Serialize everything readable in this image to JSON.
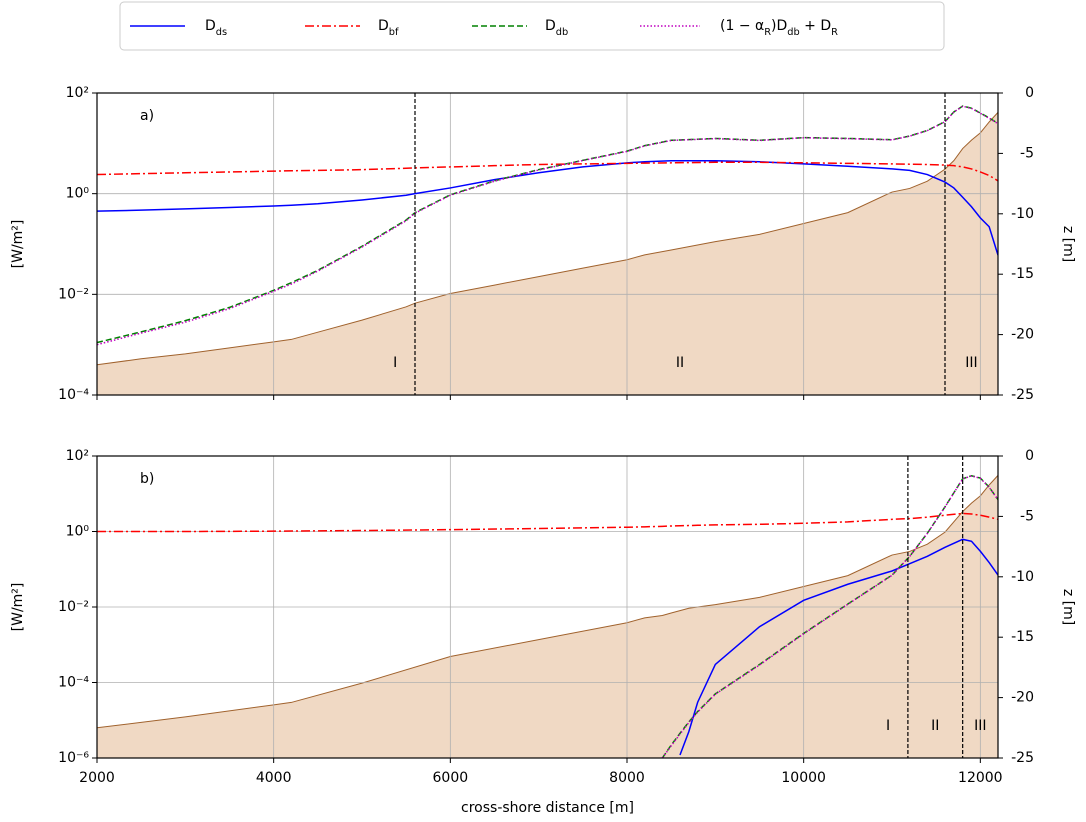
{
  "chart_data": [
    {
      "type": "line",
      "label": "a)",
      "ylabel": "[W/m²]",
      "y2label": "z [m]",
      "log_y": true,
      "grid": true,
      "show_xtick_labels": false,
      "xlim": [
        2000,
        12200
      ],
      "xticks": [
        2000,
        4000,
        6000,
        8000,
        10000,
        12000
      ],
      "ylim": [
        0.0001,
        100
      ],
      "yticks": [
        {
          "value": 0.0001,
          "label": "10⁻⁴"
        },
        {
          "value": 0.01,
          "label": "10⁻²"
        },
        {
          "value": 1,
          "label": "10⁰"
        },
        {
          "value": 100,
          "label": "10²"
        }
      ],
      "y2lim": [
        -25,
        0
      ],
      "y2ticks": [
        0,
        -5,
        -10,
        -15,
        -20,
        -25
      ],
      "x": [
        2000,
        2500,
        3000,
        3500,
        4000,
        4200,
        4500,
        5000,
        5500,
        5600,
        6000,
        6500,
        7000,
        7500,
        8000,
        8200,
        8500,
        9000,
        9500,
        10000,
        10500,
        11000,
        11200,
        11400,
        11600,
        11700,
        11800,
        11900,
        12000,
        12100,
        12200
      ],
      "series": [
        {
          "name": "D_ds",
          "color": "#0000ff",
          "linestyle": "solid",
          "values": [
            0.45,
            0.47,
            0.5,
            0.53,
            0.57,
            0.59,
            0.63,
            0.75,
            0.93,
            1.0,
            1.3,
            1.9,
            2.6,
            3.4,
            4.1,
            4.3,
            4.5,
            4.5,
            4.3,
            3.9,
            3.5,
            3.1,
            2.9,
            2.4,
            1.7,
            1.3,
            0.85,
            0.55,
            0.33,
            0.22,
            0.06
          ]
        },
        {
          "name": "D_bf",
          "color": "#ff0000",
          "linestyle": "dashdot",
          "values": [
            2.4,
            2.5,
            2.6,
            2.7,
            2.8,
            2.85,
            2.9,
            3.0,
            3.2,
            3.25,
            3.4,
            3.6,
            3.8,
            3.9,
            4.0,
            4.05,
            4.1,
            4.2,
            4.2,
            4.1,
            4.0,
            3.9,
            3.85,
            3.8,
            3.7,
            3.6,
            3.4,
            3.1,
            2.7,
            2.3,
            1.8
          ]
        },
        {
          "name": "D_db",
          "color": "#008000",
          "linestyle": "dashed",
          "values": [
            0.0011,
            0.0018,
            0.003,
            0.0055,
            0.012,
            0.017,
            0.03,
            0.09,
            0.3,
            0.42,
            0.95,
            1.8,
            3.0,
            4.6,
            7.0,
            9.0,
            11.5,
            12.5,
            11.5,
            13.0,
            12.5,
            11.8,
            14,
            18,
            27,
            42,
            55,
            50,
            40,
            32,
            25
          ]
        },
        {
          "name": "(1 − α_R)D_db + D_R",
          "color": "#bf00bf",
          "linestyle": "dotted",
          "values": [
            0.001,
            0.0017,
            0.0028,
            0.0052,
            0.0115,
            0.016,
            0.029,
            0.087,
            0.29,
            0.41,
            0.93,
            1.77,
            2.95,
            4.55,
            6.9,
            8.9,
            11.4,
            12.4,
            11.4,
            12.9,
            12.4,
            11.7,
            13.9,
            17.9,
            26.8,
            41.8,
            54.5,
            49.5,
            39.5,
            31.5,
            24.5
          ]
        }
      ],
      "bathymetry": {
        "axis": "y2",
        "color": "#f0d9c4",
        "edge_color": "#a0622d",
        "values": [
          -22.5,
          -22,
          -21.6,
          -21.1,
          -20.6,
          -20.4,
          -19.8,
          -18.8,
          -17.7,
          -17.4,
          -16.6,
          -15.9,
          -15.2,
          -14.5,
          -13.8,
          -13.4,
          -13,
          -12.3,
          -11.7,
          -10.8,
          -9.9,
          -8.2,
          -7.9,
          -7.3,
          -6.3,
          -5.6,
          -4.6,
          -3.9,
          -3.3,
          -2.4,
          -1.6
        ]
      },
      "vlines": [
        5600,
        11600
      ],
      "regions": [
        "I",
        "II",
        "III"
      ]
    },
    {
      "type": "line",
      "label": "b)",
      "ylabel": "[W/m²]",
      "y2label": "z [m]",
      "xlabel": "cross-shore distance [m]",
      "log_y": true,
      "grid": true,
      "show_xtick_labels": true,
      "xlim": [
        2000,
        12200
      ],
      "xticks": [
        2000,
        4000,
        6000,
        8000,
        10000,
        12000
      ],
      "ylim": [
        1e-06,
        100
      ],
      "yticks": [
        {
          "value": 1e-06,
          "label": "10⁻⁶"
        },
        {
          "value": 0.0001,
          "label": "10⁻⁴"
        },
        {
          "value": 0.01,
          "label": "10⁻²"
        },
        {
          "value": 1,
          "label": "10⁰"
        },
        {
          "value": 100,
          "label": "10²"
        }
      ],
      "y2lim": [
        -25,
        0
      ],
      "y2ticks": [
        0,
        -5,
        -10,
        -15,
        -20,
        -25
      ],
      "x": [
        2000,
        3000,
        4000,
        4200,
        5000,
        6000,
        7000,
        8000,
        8200,
        8400,
        8500,
        8600,
        8700,
        8800,
        9000,
        9500,
        10000,
        10500,
        11000,
        11200,
        11400,
        11600,
        11800,
        11900,
        12000,
        12100,
        12200
      ],
      "series": [
        {
          "color": "#0000ff",
          "linestyle": "solid",
          "values": [
            null,
            null,
            null,
            null,
            null,
            null,
            null,
            null,
            null,
            null,
            null,
            1.2e-06,
            5e-06,
            3e-05,
            0.0003,
            0.003,
            0.015,
            0.04,
            0.09,
            0.14,
            0.22,
            0.38,
            0.62,
            0.55,
            0.3,
            0.15,
            0.07
          ]
        },
        {
          "color": "#ff0000",
          "linestyle": "dashdot",
          "values": [
            1.0,
            1.0,
            1.02,
            1.03,
            1.06,
            1.12,
            1.2,
            1.3,
            1.33,
            1.37,
            1.4,
            1.42,
            1.44,
            1.46,
            1.5,
            1.55,
            1.65,
            1.8,
            2.1,
            2.2,
            2.4,
            2.7,
            3.0,
            2.9,
            2.7,
            2.4,
            2.1
          ]
        },
        {
          "color": "#008000",
          "linestyle": "dashed",
          "values": [
            null,
            null,
            null,
            null,
            null,
            null,
            null,
            null,
            null,
            1e-06,
            2.2e-06,
            4.5e-06,
            9e-06,
            1.7e-05,
            5e-05,
            0.0003,
            0.002,
            0.012,
            0.07,
            0.22,
            0.9,
            4.5,
            25,
            30,
            26,
            15,
            7
          ]
        },
        {
          "color": "#bf00bf",
          "linestyle": "dotted",
          "values": [
            null,
            null,
            null,
            null,
            null,
            null,
            null,
            null,
            null,
            1e-06,
            2.1e-06,
            4.3e-06,
            8.7e-06,
            1.65e-05,
            4.9e-05,
            0.00029,
            0.00195,
            0.0118,
            0.069,
            0.218,
            0.89,
            4.45,
            24.7,
            29.7,
            25.7,
            14.8,
            6.9
          ]
        }
      ],
      "bathymetry": {
        "axis": "y2",
        "color": "#f0d9c4",
        "edge_color": "#a0622d",
        "values": [
          -22.5,
          -21.6,
          -20.6,
          -20.4,
          -18.8,
          -16.6,
          -15.2,
          -13.8,
          -13.4,
          -13.2,
          -13,
          -12.8,
          -12.6,
          -12.5,
          -12.3,
          -11.7,
          -10.8,
          -9.9,
          -8.2,
          -7.9,
          -7.3,
          -6.3,
          -4.6,
          -3.9,
          -3.3,
          -2.4,
          -1.6
        ]
      },
      "vlines": [
        11180,
        11800
      ],
      "regions": [
        "I",
        "II",
        "III"
      ]
    }
  ]
}
